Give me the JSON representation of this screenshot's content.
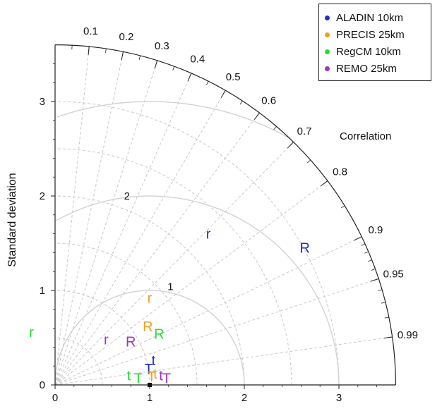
{
  "chart_data": {
    "type": "scatter",
    "subtype": "taylor-diagram",
    "ylabel": "Standard deviation",
    "angle_axis_label": "Correlation",
    "std_axis_ticks": [
      0,
      1,
      2,
      3
    ],
    "std_max": 3.6,
    "correlation_ticks": [
      "0.1",
      "0.2",
      "0.3",
      "0.4",
      "0.5",
      "0.6",
      "0.7",
      "0.8",
      "0.9",
      "0.95",
      "0.99"
    ],
    "correlation_tick_values": [
      0.1,
      0.2,
      0.3,
      0.4,
      0.5,
      0.6,
      0.7,
      0.8,
      0.9,
      0.95,
      0.99
    ],
    "rms_contours": [
      "1",
      "2"
    ],
    "rms_contour_values": [
      1,
      2,
      3
    ],
    "reference": {
      "std": 1,
      "correlation": 1
    },
    "grid": true,
    "legend_position": "top-right",
    "series": [
      {
        "name": "ALADIN 10km",
        "color": "#1f2fc8",
        "points": [
          {
            "label": "R",
            "x": 2.64,
            "y": 1.45
          },
          {
            "label": "r",
            "x": 1.62,
            "y": 1.6
          },
          {
            "label": "t",
            "x": 1.04,
            "y": 0.26
          },
          {
            "label": "T",
            "x": 0.99,
            "y": 0.17
          }
        ]
      },
      {
        "name": "PRECIS 25km",
        "color": "#f0a020",
        "points": [
          {
            "label": "r",
            "x": 1.0,
            "y": 0.92
          },
          {
            "label": "R",
            "x": 0.98,
            "y": 0.62
          },
          {
            "label": "t",
            "x": 1.06,
            "y": 0.12
          },
          {
            "label": "T",
            "x": 1.02,
            "y": 0.09
          }
        ]
      },
      {
        "name": "RegCM 10km",
        "color": "#20e030",
        "points": [
          {
            "label": "r",
            "x": -0.25,
            "y": 0.56
          },
          {
            "label": "R",
            "x": 1.1,
            "y": 0.54
          },
          {
            "label": "t",
            "x": 0.78,
            "y": 0.1
          },
          {
            "label": "T",
            "x": 0.88,
            "y": 0.07
          }
        ]
      },
      {
        "name": "REMO 25km",
        "color": "#a030d0",
        "points": [
          {
            "label": "r",
            "x": 0.54,
            "y": 0.48
          },
          {
            "label": "R",
            "x": 0.8,
            "y": 0.46
          },
          {
            "label": "t",
            "x": 1.12,
            "y": 0.1
          },
          {
            "label": "T",
            "x": 1.18,
            "y": 0.07
          }
        ]
      }
    ]
  }
}
